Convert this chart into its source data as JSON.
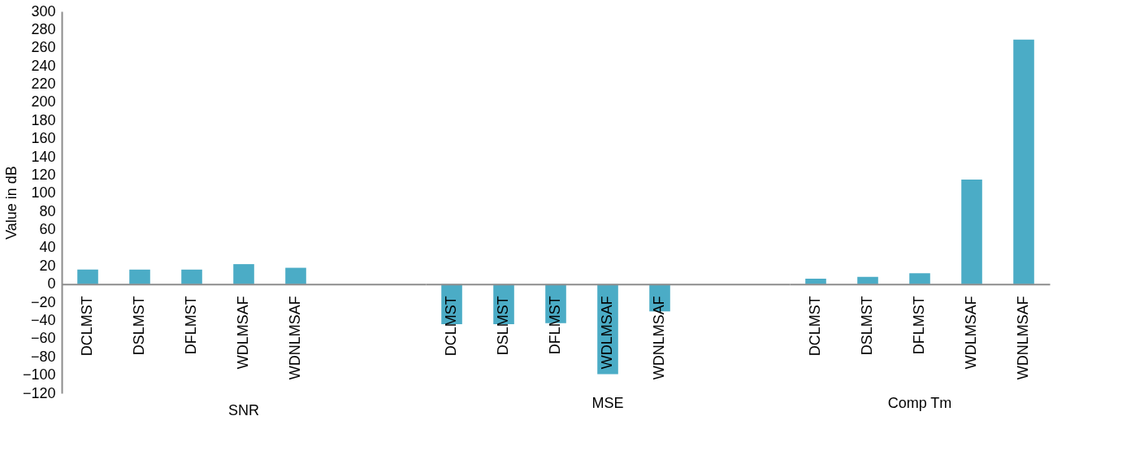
{
  "chart_data": [
    {
      "type": "bar",
      "xlabel": "SNR",
      "ylabel": "Value in dB",
      "categories": [
        "DCLMST",
        "DSLMST",
        "DFLMST",
        "WDLMSAF",
        "WDNLMSAF",
        null,
        null
      ],
      "values": [
        16,
        16,
        16,
        22,
        18,
        null,
        null
      ],
      "color": "#4bacc6",
      "ylim": [
        -120,
        300
      ],
      "yticks": [
        -120,
        -100,
        -80,
        -60,
        -40,
        -20,
        0,
        20,
        40,
        60,
        80,
        100,
        120,
        140,
        160,
        180,
        200,
        220,
        240,
        260,
        280,
        300
      ],
      "grid": false
    },
    {
      "type": "bar",
      "xlabel": "MSE",
      "categories": [
        "DCLMST",
        "DSLMST",
        "DFLMST",
        "WDLMSAF",
        "WDNLMSAF",
        null,
        null
      ],
      "values": [
        -44,
        -44,
        -43,
        -99,
        -30,
        null,
        null
      ],
      "color": "#4bacc6",
      "ylim": [
        -120,
        300
      ],
      "grid": false,
      "tick_labels": "x"
    },
    {
      "type": "bar",
      "xlabel": "Comp Tm",
      "categories": [
        "DCLMST",
        "DSLMST",
        "DFLMST",
        "WDLMSAF",
        "WDNLMSAF"
      ],
      "values": [
        6,
        8,
        12,
        115,
        269
      ],
      "color": "#4bacc6",
      "ylim": [
        -120,
        300
      ],
      "grid": false,
      "tick_labels": "x"
    }
  ]
}
